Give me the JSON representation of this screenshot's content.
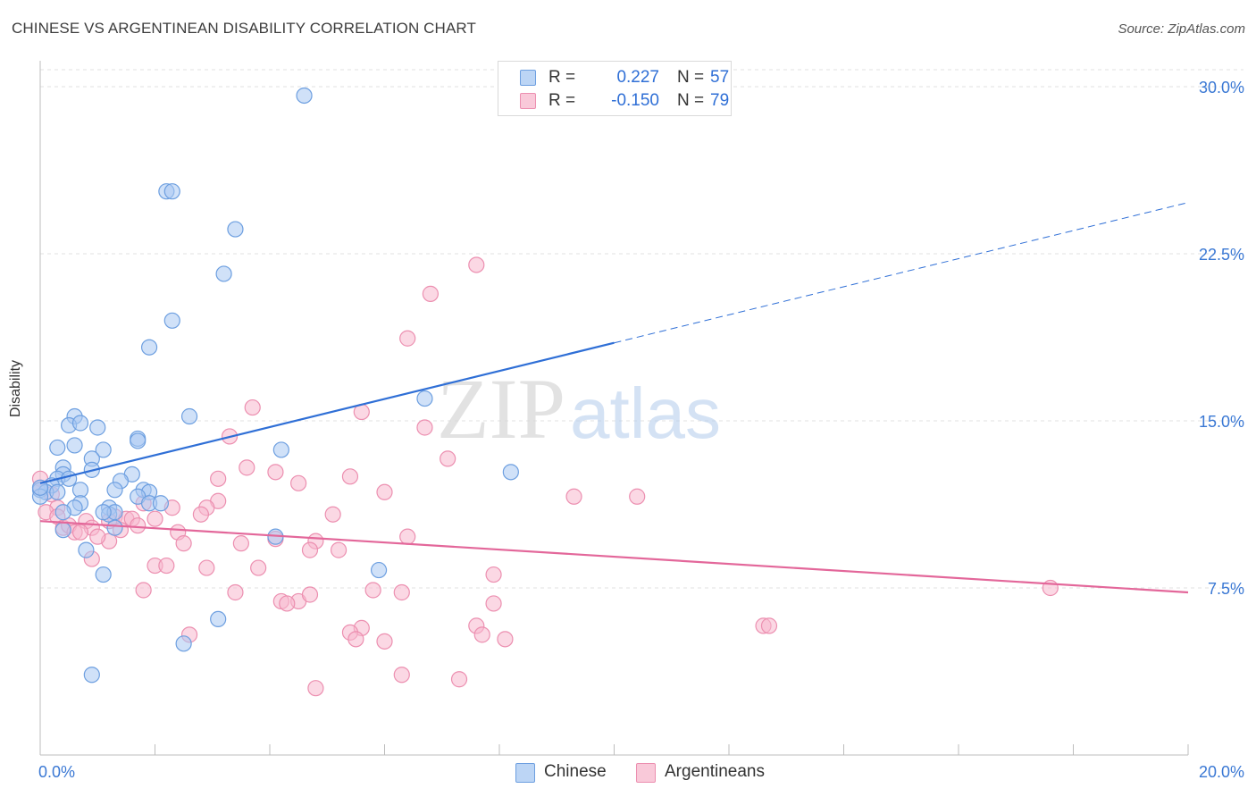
{
  "title": "CHINESE VS ARGENTINEAN DISABILITY CORRELATION CHART",
  "source": "Source: ZipAtlas.com",
  "watermark": {
    "part1": "ZIP",
    "part2": "atlas"
  },
  "legend": {
    "rows": [
      {
        "r_label": "R =",
        "r_value": "0.227",
        "n_label": "N =",
        "n_value": "57"
      },
      {
        "r_label": "R =",
        "r_value": "-0.150",
        "n_label": "N =",
        "n_value": "79"
      }
    ]
  },
  "colors": {
    "chinese_fill": "#a9c8f2",
    "chinese_stroke": "#6d9fe0",
    "chinese_line": "#2f6fd6",
    "argentinean_fill": "#f7b8cd",
    "argentinean_stroke": "#ec8fb0",
    "argentinean_line": "#e3679a",
    "axis_label": "#3a78d4",
    "grid": "#e2e2e2"
  },
  "chart_data": {
    "type": "scatter",
    "title": "CHINESE VS ARGENTINEAN DISABILITY CORRELATION CHART",
    "xlabel": "",
    "ylabel": "Disability",
    "xlim": [
      0,
      20
    ],
    "ylim": [
      0,
      30.5
    ],
    "x_tick_labels": [
      "0.0%",
      "20.0%"
    ],
    "y_ticks": [
      7.5,
      15.0,
      22.5,
      30.0
    ],
    "y_tick_labels": [
      "7.5%",
      "15.0%",
      "22.5%",
      "30.0%"
    ],
    "grid": "horizontal dashed",
    "legend_position": "bottom",
    "series": [
      {
        "name": "Chinese",
        "r": 0.227,
        "n": 57,
        "trend": {
          "x0": 0,
          "y0": 12.2,
          "x1": 10.0,
          "y1": 18.5,
          "dashed_to_x": 20,
          "dashed_to_y": 24.8
        },
        "points": [
          [
            4.6,
            29.6
          ],
          [
            2.2,
            25.3
          ],
          [
            2.3,
            25.3
          ],
          [
            3.4,
            23.6
          ],
          [
            3.2,
            21.6
          ],
          [
            2.3,
            19.5
          ],
          [
            1.9,
            18.3
          ],
          [
            6.7,
            16.0
          ],
          [
            0.6,
            15.2
          ],
          [
            2.6,
            15.2
          ],
          [
            0.5,
            14.8
          ],
          [
            0.7,
            14.9
          ],
          [
            1.0,
            14.7
          ],
          [
            1.7,
            14.2
          ],
          [
            1.7,
            14.1
          ],
          [
            0.3,
            13.8
          ],
          [
            0.6,
            13.9
          ],
          [
            1.1,
            13.7
          ],
          [
            4.2,
            13.7
          ],
          [
            0.9,
            13.3
          ],
          [
            0.9,
            12.8
          ],
          [
            0.4,
            12.9
          ],
          [
            0.4,
            12.6
          ],
          [
            0.3,
            12.4
          ],
          [
            0.5,
            12.4
          ],
          [
            1.6,
            12.6
          ],
          [
            8.2,
            12.7
          ],
          [
            0.2,
            12.1
          ],
          [
            0.0,
            11.9
          ],
          [
            0.1,
            11.8
          ],
          [
            0.3,
            11.8
          ],
          [
            0.7,
            11.9
          ],
          [
            1.4,
            12.3
          ],
          [
            1.3,
            11.9
          ],
          [
            1.8,
            11.9
          ],
          [
            1.9,
            11.8
          ],
          [
            1.7,
            11.6
          ],
          [
            0.7,
            11.3
          ],
          [
            1.2,
            11.1
          ],
          [
            1.2,
            10.8
          ],
          [
            1.3,
            10.9
          ],
          [
            1.1,
            10.9
          ],
          [
            0.6,
            11.1
          ],
          [
            0.4,
            10.9
          ],
          [
            1.9,
            11.3
          ],
          [
            2.1,
            11.3
          ],
          [
            0.4,
            10.1
          ],
          [
            1.3,
            10.2
          ],
          [
            4.1,
            9.8
          ],
          [
            0.8,
            9.2
          ],
          [
            1.1,
            8.1
          ],
          [
            5.9,
            8.3
          ],
          [
            3.1,
            6.1
          ],
          [
            2.5,
            5.0
          ],
          [
            0.9,
            3.6
          ],
          [
            0.0,
            11.6
          ],
          [
            0.0,
            12.0
          ]
        ]
      },
      {
        "name": "Argentineans",
        "r": -0.15,
        "n": 79,
        "trend": {
          "x0": 0,
          "y0": 10.5,
          "x1": 20,
          "y1": 7.3
        },
        "points": [
          [
            7.6,
            22.0
          ],
          [
            6.8,
            20.7
          ],
          [
            6.4,
            18.7
          ],
          [
            3.7,
            15.6
          ],
          [
            5.6,
            15.4
          ],
          [
            6.7,
            14.7
          ],
          [
            3.3,
            14.3
          ],
          [
            7.1,
            13.3
          ],
          [
            3.6,
            12.9
          ],
          [
            4.1,
            12.7
          ],
          [
            5.4,
            12.5
          ],
          [
            3.1,
            12.4
          ],
          [
            4.5,
            12.2
          ],
          [
            0.0,
            12.4
          ],
          [
            0.0,
            12.0
          ],
          [
            0.2,
            11.7
          ],
          [
            6.0,
            11.8
          ],
          [
            9.3,
            11.6
          ],
          [
            10.4,
            11.6
          ],
          [
            3.1,
            11.4
          ],
          [
            2.9,
            11.1
          ],
          [
            2.3,
            11.1
          ],
          [
            1.8,
            11.3
          ],
          [
            0.3,
            11.1
          ],
          [
            0.1,
            10.9
          ],
          [
            0.3,
            10.7
          ],
          [
            1.3,
            10.7
          ],
          [
            1.5,
            10.6
          ],
          [
            1.6,
            10.6
          ],
          [
            0.8,
            10.5
          ],
          [
            0.9,
            10.2
          ],
          [
            1.2,
            10.5
          ],
          [
            1.4,
            10.1
          ],
          [
            2.0,
            10.6
          ],
          [
            1.7,
            10.3
          ],
          [
            2.8,
            10.8
          ],
          [
            5.1,
            10.8
          ],
          [
            0.4,
            10.2
          ],
          [
            0.5,
            10.3
          ],
          [
            0.6,
            10.0
          ],
          [
            0.7,
            10.0
          ],
          [
            2.4,
            10.0
          ],
          [
            3.5,
            9.5
          ],
          [
            2.5,
            9.5
          ],
          [
            1.2,
            9.6
          ],
          [
            1.0,
            9.8
          ],
          [
            4.1,
            9.7
          ],
          [
            4.8,
            9.6
          ],
          [
            6.4,
            9.8
          ],
          [
            4.7,
            9.2
          ],
          [
            5.2,
            9.2
          ],
          [
            0.9,
            8.8
          ],
          [
            2.0,
            8.5
          ],
          [
            2.2,
            8.5
          ],
          [
            2.9,
            8.4
          ],
          [
            3.8,
            8.4
          ],
          [
            7.9,
            8.1
          ],
          [
            1.8,
            7.4
          ],
          [
            3.4,
            7.3
          ],
          [
            5.8,
            7.4
          ],
          [
            6.3,
            7.3
          ],
          [
            4.2,
            6.9
          ],
          [
            4.5,
            6.9
          ],
          [
            4.3,
            6.8
          ],
          [
            7.9,
            6.8
          ],
          [
            4.7,
            7.2
          ],
          [
            7.6,
            5.8
          ],
          [
            7.7,
            5.4
          ],
          [
            5.6,
            5.7
          ],
          [
            5.4,
            5.5
          ],
          [
            5.5,
            5.2
          ],
          [
            6.0,
            5.1
          ],
          [
            8.1,
            5.2
          ],
          [
            12.6,
            5.8
          ],
          [
            12.7,
            5.8
          ],
          [
            2.6,
            5.4
          ],
          [
            6.3,
            3.6
          ],
          [
            7.3,
            3.4
          ],
          [
            4.8,
            3.0
          ],
          [
            17.6,
            7.5
          ]
        ]
      }
    ]
  }
}
